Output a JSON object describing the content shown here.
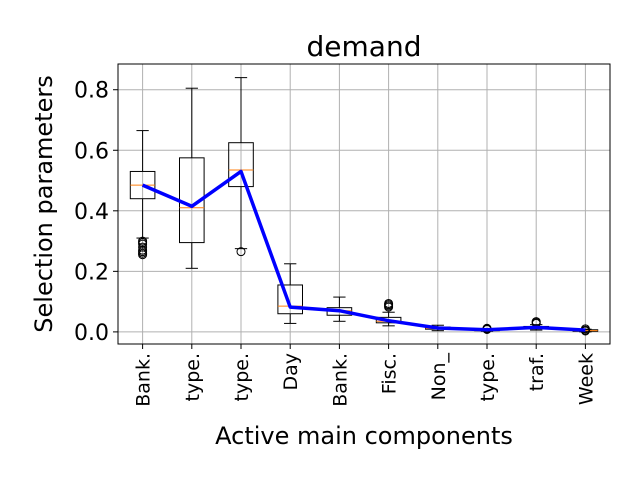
{
  "chart_data": {
    "type": "box",
    "title": "demand",
    "xlabel": "Active main components",
    "ylabel": "Selection parameters",
    "ylim": [
      -0.04,
      0.885
    ],
    "yticks": [
      0.0,
      0.2,
      0.4,
      0.6,
      0.8
    ],
    "ytick_labels": [
      "0.0",
      "0.2",
      "0.4",
      "0.6",
      "0.8"
    ],
    "grid": true,
    "categories": [
      "Bank.",
      "type.",
      "type.",
      "Day",
      "Bank.",
      "Fisc.",
      "Non_",
      "type.",
      "traf.",
      "Week"
    ],
    "boxes": [
      {
        "whisker_low": 0.31,
        "q1": 0.44,
        "median": 0.485,
        "q3": 0.53,
        "whisker_high": 0.665,
        "outliers": [
          0.255,
          0.26,
          0.265,
          0.27,
          0.28,
          0.29,
          0.295,
          0.3
        ]
      },
      {
        "whisker_low": 0.21,
        "q1": 0.295,
        "median": 0.41,
        "q3": 0.575,
        "whisker_high": 0.805,
        "outliers": []
      },
      {
        "whisker_low": 0.275,
        "q1": 0.48,
        "median": 0.535,
        "q3": 0.625,
        "whisker_high": 0.84,
        "outliers": [
          0.265
        ]
      },
      {
        "whisker_low": 0.028,
        "q1": 0.06,
        "median": 0.085,
        "q3": 0.155,
        "whisker_high": 0.225,
        "outliers": []
      },
      {
        "whisker_low": 0.035,
        "q1": 0.055,
        "median": 0.07,
        "q3": 0.08,
        "whisker_high": 0.115,
        "outliers": []
      },
      {
        "whisker_low": 0.02,
        "q1": 0.03,
        "median": 0.035,
        "q3": 0.048,
        "whisker_high": 0.065,
        "outliers": [
          0.082,
          0.086,
          0.09,
          0.094
        ]
      },
      {
        "whisker_low": 0.004,
        "q1": 0.009,
        "median": 0.012,
        "q3": 0.016,
        "whisker_high": 0.022,
        "outliers": []
      },
      {
        "whisker_low": 0.002,
        "q1": 0.004,
        "median": 0.006,
        "q3": 0.009,
        "whisker_high": 0.011,
        "outliers": [
          0.008,
          0.01,
          0.012
        ]
      },
      {
        "whisker_low": 0.006,
        "q1": 0.01,
        "median": 0.014,
        "q3": 0.018,
        "whisker_high": 0.024,
        "outliers": [
          0.028,
          0.031,
          0.034
        ]
      },
      {
        "whisker_low": 0.0,
        "q1": 0.002,
        "median": 0.004,
        "q3": 0.007,
        "whisker_high": 0.009,
        "outliers": [
          0.003,
          0.006,
          0.01
        ]
      }
    ],
    "series": [
      {
        "type": "line",
        "color": "#0000ff",
        "values": [
          0.485,
          0.415,
          0.53,
          0.082,
          0.07,
          0.037,
          0.013,
          0.007,
          0.015,
          0.006
        ]
      }
    ],
    "colors": {
      "box": "#000000",
      "median": "#ff7f0e",
      "line": "#0000ff",
      "grid": "#b0b0b0"
    }
  }
}
